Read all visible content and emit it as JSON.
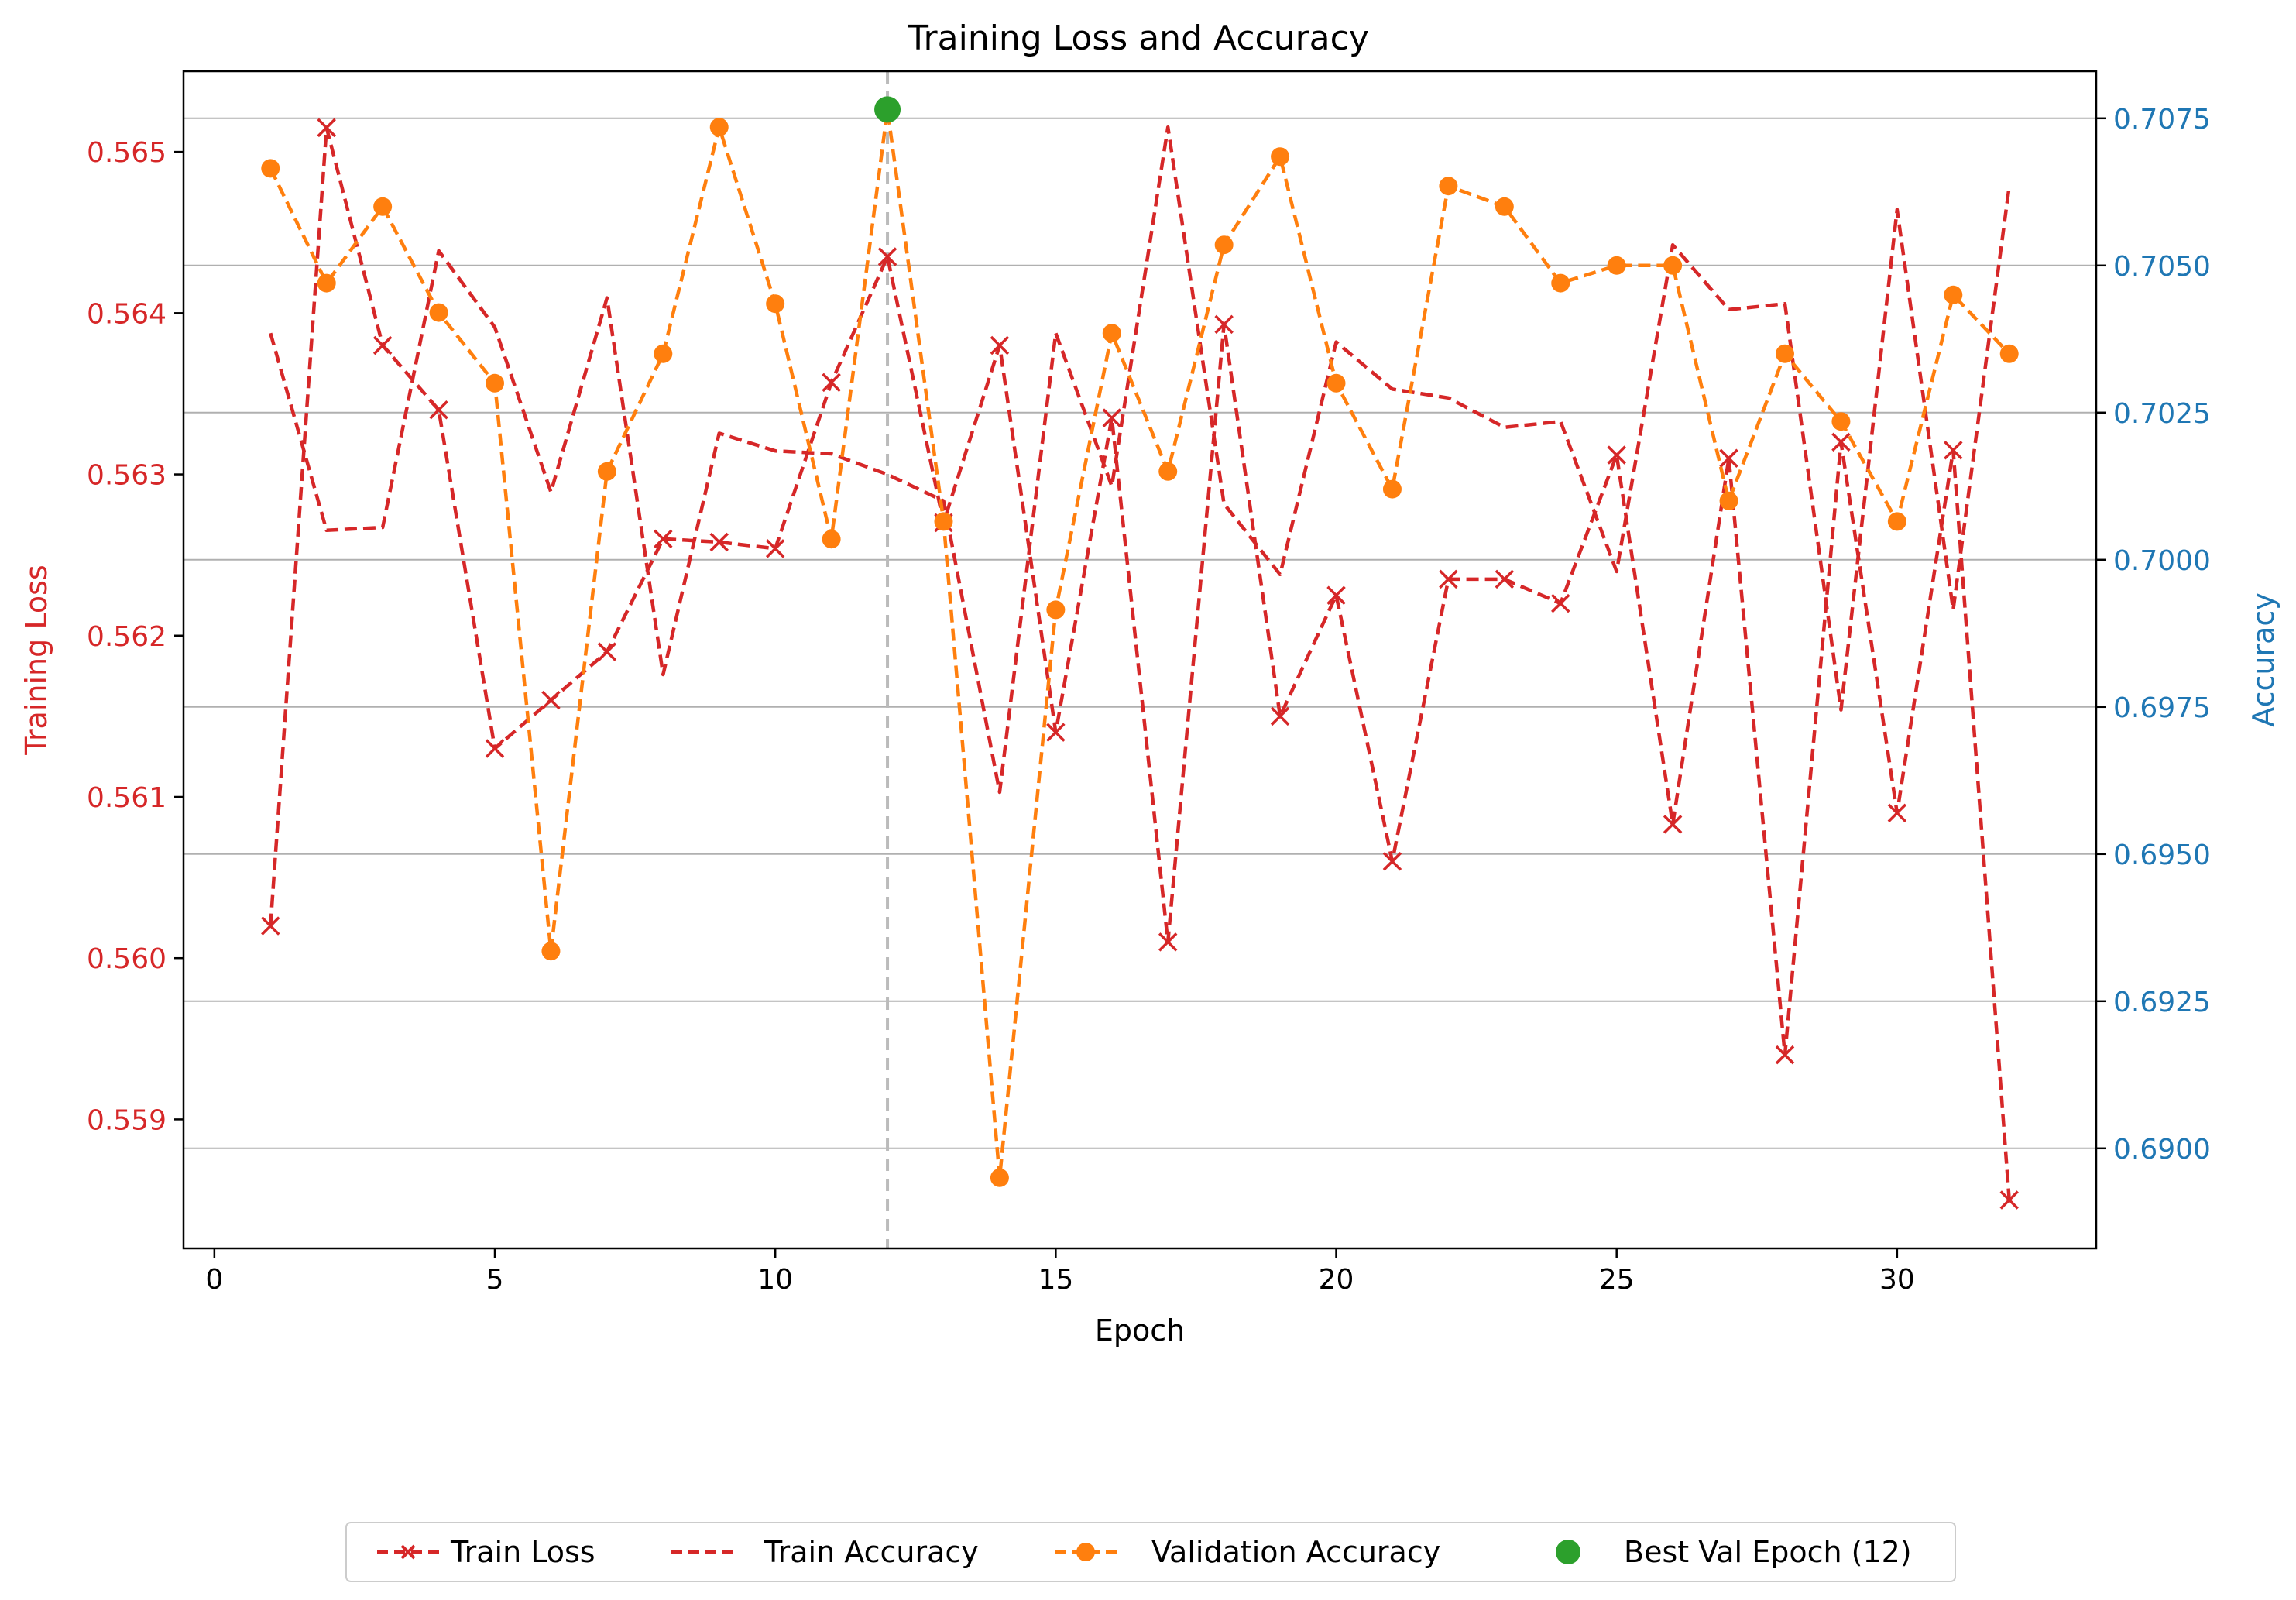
{
  "chart_data": {
    "type": "line",
    "title": "Training Loss and Accuracy",
    "xlabel": "Epoch",
    "ylabel_left": "Training Loss",
    "ylabel_right": "Accuracy",
    "xlim": [
      -0.55,
      33.55
    ],
    "ylim_left": [
      0.5582,
      0.5655
    ],
    "ylim_right": [
      0.6883,
      0.7083
    ],
    "xticks": [
      0,
      5,
      10,
      15,
      20,
      25,
      30
    ],
    "yticks_left": [
      0.559,
      0.56,
      0.561,
      0.562,
      0.563,
      0.564,
      0.565
    ],
    "yticks_right": [
      0.69,
      0.6925,
      0.695,
      0.6975,
      0.7,
      0.7025,
      0.705,
      0.7075
    ],
    "yticks_left_labels": [
      "0.559",
      "0.560",
      "0.561",
      "0.562",
      "0.563",
      "0.564",
      "0.565"
    ],
    "yticks_right_labels": [
      "0.6900",
      "0.6925",
      "0.6950",
      "0.6975",
      "0.7000",
      "0.7025",
      "0.7050",
      "0.7075"
    ],
    "grid": "horizontal (right axis)",
    "legend_position": "bottom-center, below plot",
    "colors": {
      "loss": "#d62728",
      "train_acc": "#d62728",
      "val_acc": "#ff7f0e",
      "best": "#2ca02c",
      "left_axis": "#d62728",
      "right_axis": "#1f77b4",
      "best_line": "#bbbbbb",
      "grid": "#b0b0b0"
    },
    "epochs": [
      1,
      2,
      3,
      4,
      5,
      6,
      7,
      8,
      9,
      10,
      11,
      12,
      13,
      14,
      15,
      16,
      17,
      18,
      19,
      20,
      21,
      22,
      23,
      24,
      25,
      26,
      27,
      28,
      29,
      30,
      31,
      32
    ],
    "series": [
      {
        "name": "Train Loss",
        "axis": "left",
        "style": "dashed-x",
        "values": [
          0.5602,
          0.56515,
          0.5638,
          0.5634,
          0.5613,
          0.5616,
          0.5619,
          0.5626,
          0.56258,
          0.56254,
          0.56357,
          0.56435,
          0.5627,
          0.5638,
          0.5614,
          0.56335,
          0.5601,
          0.56393,
          0.5615,
          0.56225,
          0.5606,
          0.56235,
          0.56235,
          0.5622,
          0.56312,
          0.56083,
          0.5631,
          0.5594,
          0.5632,
          0.5609,
          0.56315,
          0.5585
        ]
      },
      {
        "name": "Train Accuracy",
        "axis": "right",
        "style": "dashed",
        "values": [
          0.70385,
          0.7005,
          0.70055,
          0.70525,
          0.70395,
          0.70115,
          0.70445,
          0.69805,
          0.70215,
          0.70185,
          0.7018,
          0.70145,
          0.701,
          0.69605,
          0.70385,
          0.70125,
          0.70735,
          0.70095,
          0.69975,
          0.7037,
          0.7029,
          0.70275,
          0.70225,
          0.70235,
          0.6998,
          0.70535,
          0.70425,
          0.70435,
          0.69745,
          0.70595,
          0.69915,
          0.70635
        ]
      },
      {
        "name": "Validation Accuracy",
        "axis": "right",
        "style": "dashed-o",
        "values": [
          0.70665,
          0.7047,
          0.706,
          0.7042,
          0.703,
          0.69335,
          0.7015,
          0.7035,
          0.70735,
          0.70435,
          0.70035,
          0.70765,
          0.70065,
          0.6895,
          0.69915,
          0.70385,
          0.7015,
          0.70535,
          0.70685,
          0.703,
          0.7012,
          0.70635,
          0.706,
          0.7047,
          0.705,
          0.705,
          0.701,
          0.7035,
          0.70235,
          0.70065,
          0.7045,
          0.7035
        ]
      }
    ],
    "best": {
      "name": "Best Val Epoch (12)",
      "epoch": 12,
      "value": 0.70765
    },
    "legend": [
      "Train Loss",
      "Train Accuracy",
      "Validation Accuracy",
      "Best Val Epoch (12)"
    ]
  }
}
